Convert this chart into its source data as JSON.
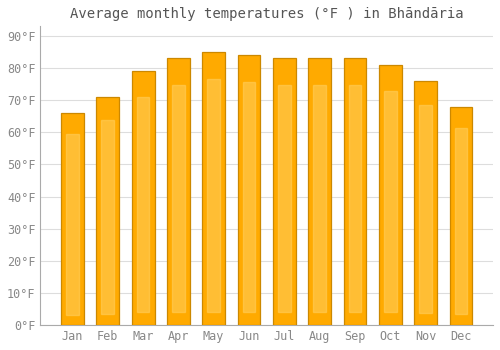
{
  "title": "Average monthly temperatures (°F ) in Bhāndāria",
  "months": [
    "Jan",
    "Feb",
    "Mar",
    "Apr",
    "May",
    "Jun",
    "Jul",
    "Aug",
    "Sep",
    "Oct",
    "Nov",
    "Dec"
  ],
  "values": [
    66,
    71,
    79,
    83,
    85,
    84,
    83,
    83,
    83,
    81,
    76,
    68
  ],
  "bar_color_main": "#FFAA00",
  "bar_color_light": "#FFD060",
  "bar_edge_color": "#CC8800",
  "background_color": "#ffffff",
  "plot_bg_color": "#ffffff",
  "grid_color": "#dddddd",
  "yticks": [
    0,
    10,
    20,
    30,
    40,
    50,
    60,
    70,
    80,
    90
  ],
  "ylim": [
    0,
    93
  ],
  "title_fontsize": 10,
  "tick_fontsize": 8.5,
  "text_color": "#888888",
  "title_color": "#555555"
}
